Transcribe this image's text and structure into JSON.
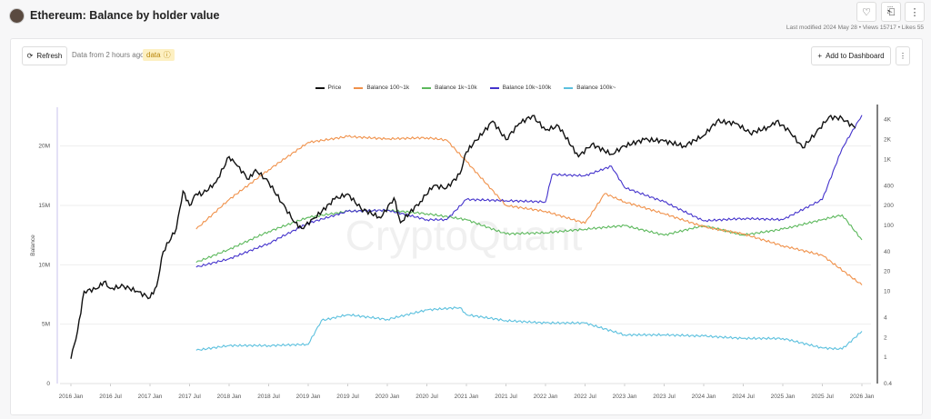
{
  "header": {
    "title": "Ethereum: Balance by holder value",
    "meta": "Last modified 2024 May 28 • Views 15717 • Likes 55",
    "icons": {
      "like": "heart-icon",
      "bookmark": "bookmark-icon",
      "more": "more-vertical-icon"
    }
  },
  "toolbar": {
    "refresh_label": "Refresh",
    "data_from": "Data from 2 hours ago",
    "badge": "data",
    "add_label": "Add to Dashboard"
  },
  "watermark": "CryptoQuant",
  "chart_data": {
    "type": "line",
    "title": "",
    "ylabel": "Balance",
    "ylabel_right": "",
    "ylim": [
      0,
      22500000
    ],
    "ylim_right": [
      0.4,
      4500
    ],
    "y_right_scale": "log",
    "grid": true,
    "legend": "top",
    "x_ticks": [
      "2016 Jan",
      "2016 Jul",
      "2017 Jan",
      "2017 Jul",
      "2018 Jan",
      "2018 Jul",
      "2019 Jan",
      "2019 Jul",
      "2020 Jan",
      "2020 Jul",
      "2021 Jan",
      "2021 Jul",
      "2022 Jan",
      "2022 Jul",
      "2023 Jan",
      "2023 Jul",
      "2024 Jan",
      "2024 Jul",
      "2025 Jan",
      "2025 Jul",
      "2026 Jan"
    ],
    "y_ticks": [
      "0",
      "5M",
      "10M",
      "15M",
      "20M"
    ],
    "y_tick_values": [
      0,
      5000000,
      10000000,
      15000000,
      20000000
    ],
    "y_right_ticks": [
      "0.4",
      "1",
      "2",
      "4",
      "10",
      "20",
      "40",
      "100",
      "200",
      "400",
      "1K",
      "2K",
      "4K"
    ],
    "y_right_tick_values": [
      0.4,
      1,
      2,
      4,
      10,
      20,
      40,
      100,
      200,
      400,
      1000,
      2000,
      4000
    ],
    "series": [
      {
        "name": "Price",
        "color": "#111111",
        "axis": "right",
        "points": [
          [
            "2016-01",
            0.95
          ],
          [
            "2016-02",
            2.5
          ],
          [
            "2016-03",
            10
          ],
          [
            "2016-05",
            11
          ],
          [
            "2016-06",
            14
          ],
          [
            "2016-07",
            11
          ],
          [
            "2016-09",
            12
          ],
          [
            "2016-11",
            10
          ],
          [
            "2017-01",
            8
          ],
          [
            "2017-02",
            12
          ],
          [
            "2017-03",
            40
          ],
          [
            "2017-05",
            90
          ],
          [
            "2017-06",
            330
          ],
          [
            "2017-07",
            200
          ],
          [
            "2017-08",
            300
          ],
          [
            "2017-09",
            300
          ],
          [
            "2017-11",
            450
          ],
          [
            "2018-01",
            1100
          ],
          [
            "2018-02",
            850
          ],
          [
            "2018-04",
            500
          ],
          [
            "2018-05",
            700
          ],
          [
            "2018-07",
            450
          ],
          [
            "2018-09",
            220
          ],
          [
            "2018-11",
            110
          ],
          [
            "2018-12",
            90
          ],
          [
            "2019-02",
            130
          ],
          [
            "2019-05",
            250
          ],
          [
            "2019-07",
            300
          ],
          [
            "2019-09",
            180
          ],
          [
            "2019-12",
            130
          ],
          [
            "2020-02",
            260
          ],
          [
            "2020-03",
            110
          ],
          [
            "2020-06",
            230
          ],
          [
            "2020-08",
            400
          ],
          [
            "2020-10",
            370
          ],
          [
            "2020-12",
            600
          ],
          [
            "2021-01",
            1300
          ],
          [
            "2021-02",
            1700
          ],
          [
            "2021-05",
            3800
          ],
          [
            "2021-07",
            2000
          ],
          [
            "2021-09",
            3500
          ],
          [
            "2021-11",
            4600
          ],
          [
            "2022-01",
            2800
          ],
          [
            "2022-03",
            3200
          ],
          [
            "2022-06",
            1100
          ],
          [
            "2022-08",
            1700
          ],
          [
            "2022-11",
            1200
          ],
          [
            "2023-01",
            1600
          ],
          [
            "2023-04",
            2000
          ],
          [
            "2023-07",
            1900
          ],
          [
            "2023-10",
            1600
          ],
          [
            "2024-01",
            2300
          ],
          [
            "2024-03",
            3800
          ],
          [
            "2024-06",
            3500
          ],
          [
            "2024-08",
            2500
          ],
          [
            "2024-11",
            3100
          ],
          [
            "2024-12",
            3800
          ],
          [
            "2025-02",
            2700
          ],
          [
            "2025-04",
            1500
          ],
          [
            "2025-06",
            2500
          ],
          [
            "2025-08",
            4400
          ],
          [
            "2025-10",
            4200
          ],
          [
            "2025-12",
            3000
          ]
        ]
      },
      {
        "name": "Balance 100~1k",
        "color": "#f0914a",
        "axis": "left",
        "points": [
          [
            "2017-08",
            13000000
          ],
          [
            "2018-01",
            15500000
          ],
          [
            "2018-07",
            18000000
          ],
          [
            "2019-01",
            20300000
          ],
          [
            "2019-07",
            20800000
          ],
          [
            "2020-01",
            20600000
          ],
          [
            "2020-07",
            20700000
          ],
          [
            "2020-10",
            20500000
          ],
          [
            "2021-01",
            18700000
          ],
          [
            "2021-07",
            15000000
          ],
          [
            "2022-01",
            14500000
          ],
          [
            "2022-07",
            13500000
          ],
          [
            "2022-10",
            16000000
          ],
          [
            "2023-01",
            15300000
          ],
          [
            "2023-07",
            14300000
          ],
          [
            "2024-01",
            13200000
          ],
          [
            "2024-07",
            12600000
          ],
          [
            "2025-01",
            11600000
          ],
          [
            "2025-07",
            10800000
          ],
          [
            "2026-01",
            8300000
          ]
        ]
      },
      {
        "name": "Balance 1k~10k",
        "color": "#5cb85c",
        "axis": "left",
        "points": [
          [
            "2017-08",
            10200000
          ],
          [
            "2018-01",
            11300000
          ],
          [
            "2018-07",
            12800000
          ],
          [
            "2019-01",
            14000000
          ],
          [
            "2019-07",
            14500000
          ],
          [
            "2020-01",
            14600000
          ],
          [
            "2020-07",
            14300000
          ],
          [
            "2021-01",
            13800000
          ],
          [
            "2021-07",
            12600000
          ],
          [
            "2022-01",
            12700000
          ],
          [
            "2022-07",
            13000000
          ],
          [
            "2023-01",
            13300000
          ],
          [
            "2023-07",
            12500000
          ],
          [
            "2024-01",
            13300000
          ],
          [
            "2024-07",
            12500000
          ],
          [
            "2025-01",
            13000000
          ],
          [
            "2025-07",
            13800000
          ],
          [
            "2025-10",
            14200000
          ],
          [
            "2026-01",
            12100000
          ]
        ]
      },
      {
        "name": "Balance 10k~100k",
        "color": "#4433cc",
        "axis": "left",
        "points": [
          [
            "2017-08",
            9800000
          ],
          [
            "2018-01",
            10500000
          ],
          [
            "2018-07",
            11800000
          ],
          [
            "2019-01",
            13500000
          ],
          [
            "2019-07",
            14500000
          ],
          [
            "2020-01",
            14600000
          ],
          [
            "2020-07",
            13800000
          ],
          [
            "2020-10",
            13800000
          ],
          [
            "2021-01",
            15500000
          ],
          [
            "2021-07",
            15400000
          ],
          [
            "2022-01",
            15300000
          ],
          [
            "2022-02",
            17600000
          ],
          [
            "2022-07",
            17500000
          ],
          [
            "2022-11",
            18300000
          ],
          [
            "2023-01",
            16500000
          ],
          [
            "2023-07",
            15300000
          ],
          [
            "2024-01",
            13700000
          ],
          [
            "2024-07",
            13900000
          ],
          [
            "2025-01",
            13800000
          ],
          [
            "2025-07",
            15500000
          ],
          [
            "2025-10",
            19800000
          ],
          [
            "2026-01",
            22600000
          ]
        ]
      },
      {
        "name": "Balance 100k~",
        "color": "#5bc0de",
        "axis": "left",
        "points": [
          [
            "2017-08",
            2800000
          ],
          [
            "2018-01",
            3200000
          ],
          [
            "2018-07",
            3200000
          ],
          [
            "2019-01",
            3300000
          ],
          [
            "2019-03",
            5300000
          ],
          [
            "2019-07",
            5800000
          ],
          [
            "2020-01",
            5400000
          ],
          [
            "2020-07",
            6200000
          ],
          [
            "2020-12",
            6400000
          ],
          [
            "2021-01",
            5800000
          ],
          [
            "2021-07",
            5300000
          ],
          [
            "2022-01",
            5100000
          ],
          [
            "2022-07",
            5100000
          ],
          [
            "2023-01",
            4100000
          ],
          [
            "2023-07",
            4100000
          ],
          [
            "2024-01",
            4000000
          ],
          [
            "2024-07",
            3800000
          ],
          [
            "2025-01",
            3800000
          ],
          [
            "2025-07",
            3000000
          ],
          [
            "2025-10",
            2900000
          ],
          [
            "2026-01",
            4400000
          ]
        ]
      }
    ]
  }
}
